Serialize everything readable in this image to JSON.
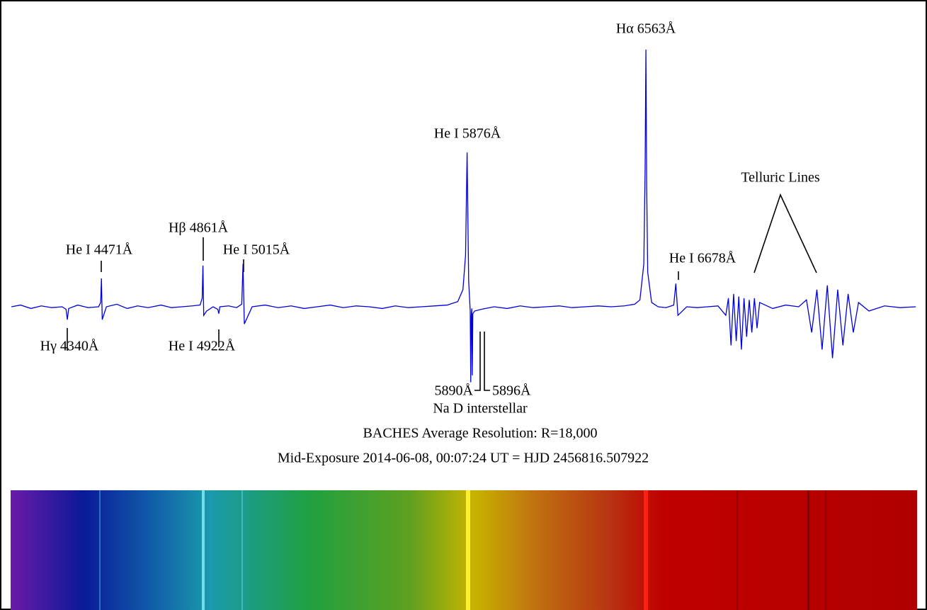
{
  "chart_data": {
    "type": "line",
    "color": "#0000dd",
    "xlim": [
      4122,
      7605
    ],
    "ylim": [
      0,
      4.5
    ],
    "x": [
      4125,
      4160,
      4200,
      4240,
      4280,
      4320,
      4335,
      4340,
      4345,
      4380,
      4420,
      4460,
      4468,
      4471,
      4474,
      4490,
      4530,
      4570,
      4610,
      4650,
      4700,
      4740,
      4780,
      4820,
      4850,
      4858,
      4861,
      4864,
      4875,
      4900,
      4918,
      4922,
      4926,
      4960,
      4990,
      5010,
      5015,
      5020,
      5050,
      5100,
      5150,
      5200,
      5250,
      5300,
      5350,
      5400,
      5450,
      5500,
      5550,
      5600,
      5650,
      5700,
      5750,
      5800,
      5840,
      5860,
      5870,
      5876,
      5882,
      5888,
      5890,
      5892,
      5894,
      5896,
      5898,
      5905,
      5930,
      5980,
      6030,
      6080,
      6130,
      6180,
      6230,
      6280,
      6330,
      6380,
      6430,
      6480,
      6520,
      6540,
      6555,
      6560,
      6563,
      6566,
      6570,
      6585,
      6610,
      6640,
      6670,
      6678,
      6686,
      6720,
      6760,
      6800,
      6840,
      6870,
      6880,
      6890,
      6900,
      6910,
      6920,
      6930,
      6940,
      6950,
      6960,
      6970,
      6980,
      6990,
      7000,
      7050,
      7100,
      7150,
      7180,
      7200,
      7220,
      7240,
      7260,
      7280,
      7300,
      7320,
      7340,
      7360,
      7380,
      7420,
      7480,
      7540,
      7600
    ],
    "values": [
      1.0,
      1.02,
      0.98,
      1.01,
      0.99,
      1.0,
      0.97,
      0.85,
      0.98,
      1.02,
      0.99,
      1.0,
      1.05,
      1.33,
      0.85,
      1.0,
      1.03,
      0.98,
      1.01,
      0.99,
      1.02,
      0.99,
      1.0,
      1.01,
      1.02,
      1.1,
      1.48,
      0.9,
      0.95,
      1.0,
      0.97,
      0.92,
      1.0,
      1.01,
      0.99,
      1.03,
      1.5,
      0.8,
      1.0,
      1.02,
      0.99,
      1.01,
      0.98,
      1.0,
      1.02,
      0.99,
      1.01,
      1.0,
      0.98,
      1.01,
      0.99,
      1.0,
      1.01,
      1.02,
      1.06,
      1.2,
      1.6,
      2.8,
      1.3,
      0.95,
      0.12,
      0.9,
      0.98,
      0.2,
      0.92,
      0.95,
      0.97,
      1.0,
      0.98,
      1.01,
      0.99,
      1.0,
      1.01,
      0.99,
      1.0,
      1.01,
      1.0,
      1.01,
      1.03,
      1.08,
      1.5,
      2.6,
      4.0,
      2.4,
      1.4,
      1.05,
      1.0,
      0.99,
      1.02,
      1.27,
      0.9,
      1.0,
      0.99,
      1.0,
      1.01,
      0.9,
      1.1,
      0.55,
      1.15,
      0.6,
      1.12,
      0.5,
      1.1,
      0.65,
      1.08,
      0.7,
      1.1,
      0.75,
      1.05,
      0.98,
      1.02,
      1.0,
      1.08,
      0.7,
      1.2,
      0.5,
      1.25,
      0.4,
      1.2,
      0.55,
      1.15,
      0.7,
      1.05,
      0.95,
      1.01,
      0.99,
      1.0
    ],
    "annotations": [
      "Hα 6563Å",
      "He I 5876Å",
      "Telluric Lines",
      "Hβ 4861Å",
      "He I 4471Å",
      "He I 5015Å",
      "He I 6678Å",
      "Hγ 4340Å",
      "He I 4922Å",
      "5890Å",
      "5896Å",
      "Na D interstellar"
    ],
    "notes": [
      "BACHES Average Resolution: R=18,000",
      "Mid-Exposure 2014-06-08, 00:07:24 UT = HJD 2456816.507922"
    ]
  }
}
